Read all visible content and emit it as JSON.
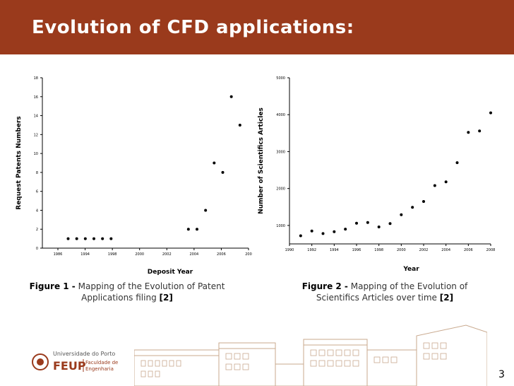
{
  "title": "Evolution of CFD applications:",
  "page_number": "3",
  "captions": {
    "fig1": {
      "label": "Figure 1 -",
      "text": "Mapping of the Evolution of Patent Applications filing",
      "ref": "[2]"
    },
    "fig2": {
      "label": "Figure 2 -",
      "text": "Mapping of the Evolution of Scientifics Articles over time",
      "ref": "[2]"
    }
  },
  "logo": {
    "line1": "Universidade do Porto",
    "mark": "FEUP",
    "line2": "Faculdade de",
    "line3": "Engenharia"
  },
  "colors": {
    "header": "#9a3a1c",
    "points": "#000000"
  },
  "chart_data": [
    {
      "type": "scatter",
      "title": "",
      "xlabel": "Deposit Year",
      "ylabel": "Request Patents Numbers",
      "xlim": [
        1984,
        2008
      ],
      "ylim": [
        0,
        18
      ],
      "xticks": [
        "1986",
        "1994",
        "1998",
        "2000",
        "2002",
        "2004",
        "2006",
        "200"
      ],
      "yticks": [
        "0",
        "2",
        "4",
        "6",
        "8",
        "10",
        "12",
        "14",
        "16",
        "18"
      ],
      "points": [
        {
          "x": 1987,
          "y": 1
        },
        {
          "x": 1988,
          "y": 1
        },
        {
          "x": 1989,
          "y": 1
        },
        {
          "x": 1990,
          "y": 1
        },
        {
          "x": 1991,
          "y": 1
        },
        {
          "x": 1992,
          "y": 1
        },
        {
          "x": 2001,
          "y": 2
        },
        {
          "x": 2002,
          "y": 2
        },
        {
          "x": 2003,
          "y": 4
        },
        {
          "x": 2004,
          "y": 9
        },
        {
          "x": 2005,
          "y": 8
        },
        {
          "x": 2006,
          "y": 16
        },
        {
          "x": 2007,
          "y": 13
        }
      ]
    },
    {
      "type": "scatter",
      "title": "",
      "xlabel": "Year",
      "ylabel": "Number of Scientifics Articles",
      "xlim": [
        1990,
        2008
      ],
      "ylim": [
        500,
        5000
      ],
      "xticks": [
        "1990",
        "1992",
        "1994",
        "1996",
        "1998",
        "2000",
        "2002",
        "2004",
        "2006",
        "2008"
      ],
      "yticks": [
        "1000",
        "2000",
        "3000",
        "4000",
        "5000"
      ],
      "points": [
        {
          "x": 1991,
          "y": 720
        },
        {
          "x": 1992,
          "y": 850
        },
        {
          "x": 1993,
          "y": 780
        },
        {
          "x": 1994,
          "y": 830
        },
        {
          "x": 1995,
          "y": 900
        },
        {
          "x": 1996,
          "y": 1060
        },
        {
          "x": 1997,
          "y": 1080
        },
        {
          "x": 1998,
          "y": 960
        },
        {
          "x": 1999,
          "y": 1050
        },
        {
          "x": 2000,
          "y": 1290
        },
        {
          "x": 2001,
          "y": 1490
        },
        {
          "x": 2002,
          "y": 1650
        },
        {
          "x": 2003,
          "y": 2080
        },
        {
          "x": 2004,
          "y": 2180
        },
        {
          "x": 2005,
          "y": 2700
        },
        {
          "x": 2006,
          "y": 3520
        },
        {
          "x": 2007,
          "y": 3560
        },
        {
          "x": 2008,
          "y": 4050
        }
      ]
    }
  ]
}
